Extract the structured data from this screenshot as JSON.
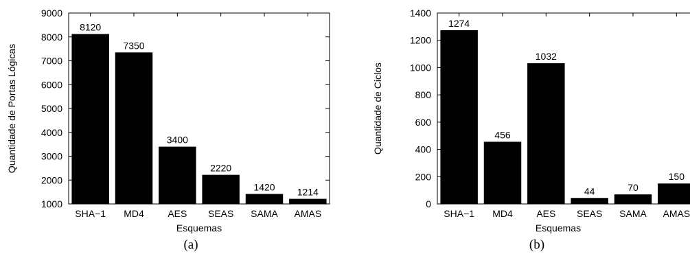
{
  "chart_data": [
    {
      "type": "bar",
      "categories": [
        "SHA−1",
        "MD4",
        "AES",
        "SEAS",
        "SAMA",
        "AMAS"
      ],
      "values": [
        8120,
        7350,
        3400,
        2220,
        1420,
        1214
      ],
      "xlabel": "Esquemas",
      "ylabel": "Quantidade de Portas Lógicas",
      "ylim": [
        1000,
        9000
      ],
      "yticks": [
        1000,
        2000,
        3000,
        4000,
        5000,
        6000,
        7000,
        8000,
        9000
      ],
      "caption": "(a)",
      "bar_color": "#000000",
      "grid": false
    },
    {
      "type": "bar",
      "categories": [
        "SHA−1",
        "MD4",
        "AES",
        "SEAS",
        "SAMA",
        "AMAS"
      ],
      "values": [
        1274,
        456,
        1032,
        44,
        70,
        150
      ],
      "xlabel": "Esquemas",
      "ylabel": "Quantidade de Ciclos",
      "ylim": [
        0,
        1400
      ],
      "yticks": [
        0,
        200,
        400,
        600,
        800,
        1000,
        1200,
        1400
      ],
      "caption": "(b)",
      "bar_color": "#000000",
      "grid": false
    }
  ]
}
